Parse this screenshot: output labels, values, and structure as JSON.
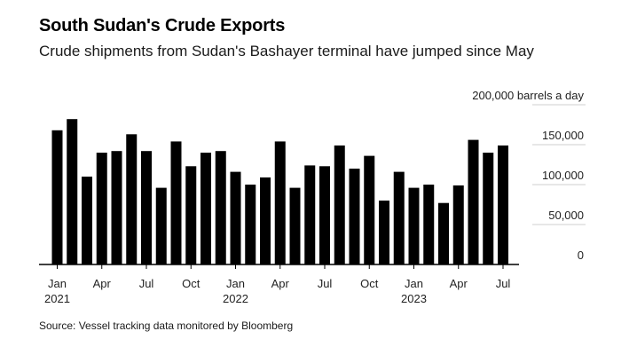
{
  "header": {
    "title": "South Sudan's Crude Exports",
    "subtitle": "Crude shipments from Sudan's Bashayer terminal have jumped since May"
  },
  "footer": {
    "source": "Source: Vessel tracking data monitored by Bloomberg"
  },
  "colors": {
    "bar": "#000000",
    "grid": "#cfcfcf",
    "axis": "#000000"
  },
  "chart_data": {
    "type": "bar",
    "title": "South Sudan's Crude Exports",
    "ylabel": "barrels a day",
    "ylim": [
      0,
      200000
    ],
    "yticks": [
      0,
      50000,
      100000,
      150000,
      200000
    ],
    "ytick_labels": [
      "0",
      "50,000",
      "100,000",
      "150,000",
      "200,000 barrels a day"
    ],
    "grid": true,
    "categories": [
      "2021-01",
      "2021-02",
      "2021-03",
      "2021-04",
      "2021-05",
      "2021-06",
      "2021-07",
      "2021-08",
      "2021-09",
      "2021-10",
      "2021-11",
      "2021-12",
      "2022-01",
      "2022-02",
      "2022-03",
      "2022-04",
      "2022-05",
      "2022-06",
      "2022-07",
      "2022-08",
      "2022-09",
      "2022-10",
      "2022-11",
      "2022-12",
      "2023-01",
      "2023-02",
      "2023-03",
      "2023-04",
      "2023-05",
      "2023-06",
      "2023-07"
    ],
    "values": [
      168000,
      182000,
      110000,
      140000,
      142000,
      163000,
      142000,
      96000,
      154000,
      123000,
      140000,
      142000,
      116000,
      100000,
      109000,
      154000,
      96000,
      124000,
      123000,
      149000,
      120000,
      136000,
      80000,
      116000,
      96000,
      100000,
      77000,
      99000,
      156000,
      140000,
      149000
    ],
    "xtick_labels": [
      {
        "index": 0,
        "month": "Jan",
        "year": "2021"
      },
      {
        "index": 3,
        "month": "Apr",
        "year": ""
      },
      {
        "index": 6,
        "month": "Jul",
        "year": ""
      },
      {
        "index": 9,
        "month": "Oct",
        "year": ""
      },
      {
        "index": 12,
        "month": "Jan",
        "year": "2022"
      },
      {
        "index": 15,
        "month": "Apr",
        "year": ""
      },
      {
        "index": 18,
        "month": "Jul",
        "year": ""
      },
      {
        "index": 21,
        "month": "Oct",
        "year": ""
      },
      {
        "index": 24,
        "month": "Jan",
        "year": "2023"
      },
      {
        "index": 27,
        "month": "Apr",
        "year": ""
      },
      {
        "index": 30,
        "month": "Jul",
        "year": ""
      }
    ]
  }
}
